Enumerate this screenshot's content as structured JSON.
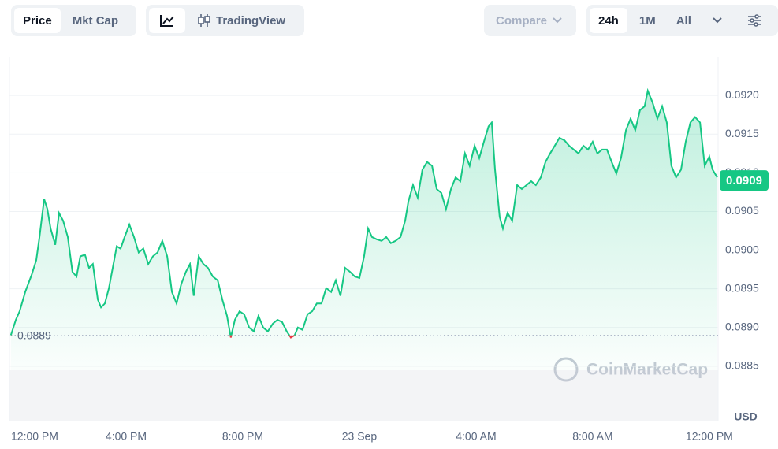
{
  "toolbar": {
    "price": "Price",
    "mkt_cap": "Mkt Cap",
    "trading_view": "TradingView",
    "compare": "Compare",
    "ranges": [
      "24h",
      "1M",
      "All"
    ]
  },
  "chart_data": {
    "type": "line",
    "color": "#16c784",
    "below_color": "#ea3943",
    "baseline": 0.0889,
    "last_price": 0.0909,
    "unit": "USD",
    "watermark": "CoinMarketCap",
    "grid": true,
    "xlim": [
      0,
      24.3
    ],
    "xticks": [
      {
        "value": 0,
        "label": "12:00 PM"
      },
      {
        "value": 4,
        "label": "4:00 PM"
      },
      {
        "value": 8,
        "label": "8:00 PM"
      },
      {
        "value": 12,
        "label": "23 Sep"
      },
      {
        "value": 16,
        "label": "4:00 AM"
      },
      {
        "value": 20,
        "label": "8:00 AM"
      },
      {
        "value": 24,
        "label": "12:00 PM"
      }
    ],
    "ylim": [
      0.088,
      0.0925
    ],
    "yticks": [
      {
        "value": 0.0885,
        "label": "0.0885"
      },
      {
        "value": 0.089,
        "label": "0.0890"
      },
      0.0895,
      {
        "value": 0.09,
        "label": "0.0900"
      },
      0.0905,
      {
        "value": 0.091,
        "label": "0.0910"
      },
      0.0915,
      {
        "value": 0.092,
        "label": "0.0920"
      }
    ],
    "x": [
      0.05,
      0.22,
      0.35,
      0.54,
      0.76,
      0.92,
      1.03,
      1.19,
      1.3,
      1.41,
      1.57,
      1.7,
      1.84,
      2.0,
      2.16,
      2.3,
      2.43,
      2.59,
      2.73,
      2.86,
      3.03,
      3.14,
      3.27,
      3.41,
      3.54,
      3.68,
      3.81,
      3.95,
      4.11,
      4.27,
      4.43,
      4.59,
      4.76,
      4.92,
      5.08,
      5.24,
      5.41,
      5.57,
      5.73,
      5.89,
      6.05,
      6.19,
      6.32,
      6.49,
      6.65,
      6.81,
      6.97,
      7.14,
      7.3,
      7.46,
      7.59,
      7.73,
      7.89,
      8.05,
      8.22,
      8.38,
      8.54,
      8.7,
      8.86,
      9.03,
      9.19,
      9.35,
      9.51,
      9.65,
      9.78,
      9.89,
      10.05,
      10.22,
      10.38,
      10.54,
      10.7,
      10.86,
      11.03,
      11.19,
      11.35,
      11.51,
      11.68,
      11.84,
      12.0,
      12.16,
      12.3,
      12.43,
      12.59,
      12.76,
      12.92,
      13.08,
      13.24,
      13.41,
      13.57,
      13.68,
      13.84,
      14.0,
      14.16,
      14.32,
      14.49,
      14.65,
      14.81,
      14.97,
      15.14,
      15.3,
      15.46,
      15.62,
      15.78,
      15.95,
      16.11,
      16.27,
      16.43,
      16.54,
      16.65,
      16.81,
      16.92,
      17.08,
      17.24,
      17.41,
      17.57,
      17.73,
      17.89,
      18.05,
      18.22,
      18.38,
      18.54,
      18.7,
      18.86,
      19.03,
      19.19,
      19.35,
      19.51,
      19.68,
      19.84,
      20.0,
      20.16,
      20.32,
      20.49,
      20.65,
      20.81,
      20.97,
      21.14,
      21.3,
      21.46,
      21.62,
      21.78,
      21.89,
      22.05,
      22.22,
      22.38,
      22.54,
      22.7,
      22.86,
      23.03,
      23.19,
      23.35,
      23.51,
      23.68,
      23.84,
      24.0,
      24.11,
      24.27
    ],
    "values": [
      0.0889,
      0.0891,
      0.08921,
      0.08946,
      0.08968,
      0.08987,
      0.09017,
      0.09066,
      0.09053,
      0.09028,
      0.09007,
      0.09048,
      0.09038,
      0.09017,
      0.08972,
      0.08966,
      0.08992,
      0.08994,
      0.08977,
      0.08982,
      0.08936,
      0.08926,
      0.08931,
      0.08951,
      0.08977,
      0.09005,
      0.09002,
      0.09017,
      0.09033,
      0.09017,
      0.08997,
      0.09002,
      0.08982,
      0.08992,
      0.08997,
      0.09012,
      0.08992,
      0.08946,
      0.08931,
      0.08956,
      0.08972,
      0.08982,
      0.08941,
      0.08992,
      0.08982,
      0.08977,
      0.08966,
      0.08961,
      0.08936,
      0.08915,
      0.08887,
      0.0891,
      0.08921,
      0.08917,
      0.089,
      0.08895,
      0.08915,
      0.089,
      0.08895,
      0.08905,
      0.0891,
      0.08907,
      0.08895,
      0.08887,
      0.0889,
      0.089,
      0.08897,
      0.08917,
      0.08921,
      0.08931,
      0.08931,
      0.08951,
      0.08946,
      0.08961,
      0.08941,
      0.08977,
      0.08972,
      0.08966,
      0.08964,
      0.08992,
      0.09028,
      0.09017,
      0.09014,
      0.09012,
      0.09017,
      0.09009,
      0.09012,
      0.09017,
      0.09038,
      0.09063,
      0.09084,
      0.09068,
      0.09104,
      0.09114,
      0.09109,
      0.09079,
      0.09074,
      0.09053,
      0.09079,
      0.09094,
      0.09089,
      0.09125,
      0.09109,
      0.09135,
      0.09119,
      0.0914,
      0.0916,
      0.09165,
      0.09104,
      0.09043,
      0.09028,
      0.09048,
      0.09038,
      0.09084,
      0.09079,
      0.09084,
      0.09089,
      0.09084,
      0.09094,
      0.09114,
      0.09125,
      0.09135,
      0.09145,
      0.09142,
      0.09135,
      0.0913,
      0.09125,
      0.09135,
      0.0913,
      0.0914,
      0.09125,
      0.0913,
      0.0913,
      0.09114,
      0.09099,
      0.09119,
      0.09155,
      0.0917,
      0.09155,
      0.09181,
      0.09186,
      0.09206,
      0.09191,
      0.0917,
      0.09186,
      0.09165,
      0.09109,
      0.09094,
      0.09104,
      0.0914,
      0.09165,
      0.09172,
      0.09165,
      0.09109,
      0.09121,
      0.09104,
      0.09094
    ]
  }
}
